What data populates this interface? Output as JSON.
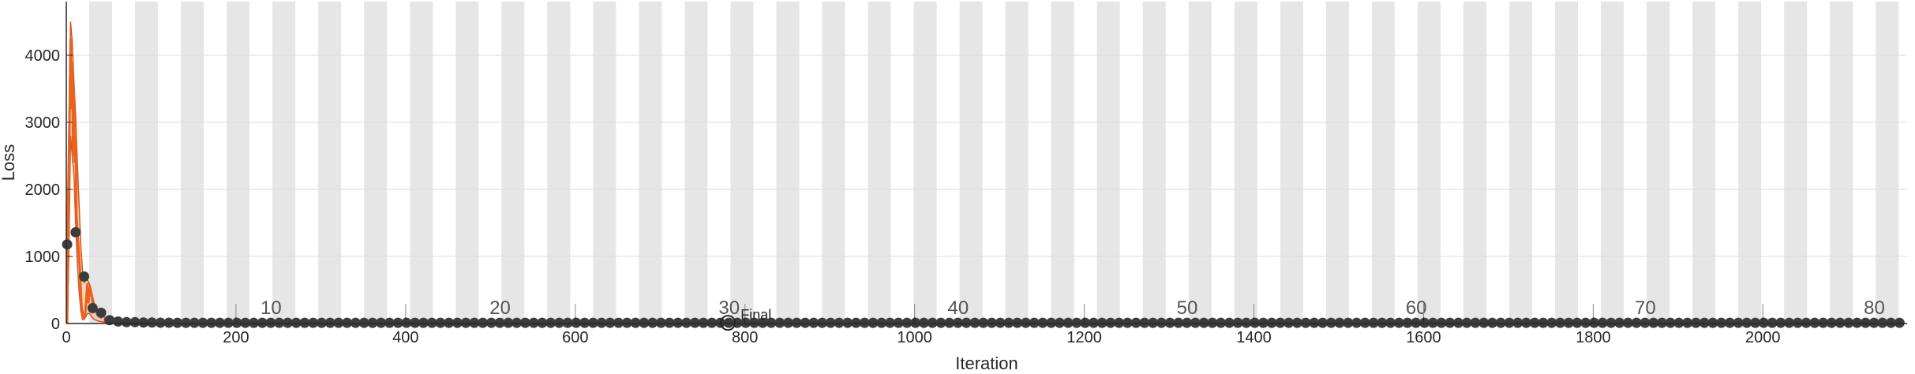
{
  "chart_data": {
    "type": "line",
    "title": "",
    "xlabel": "Iteration",
    "ylabel": "Loss",
    "xlim": [
      0,
      2170
    ],
    "ylim": [
      0,
      4800
    ],
    "grid": true,
    "xticks": [
      0,
      200,
      400,
      600,
      800,
      1000,
      1200,
      1400,
      1600,
      1800,
      2000
    ],
    "yticks": [
      0,
      1000,
      2000,
      3000,
      4000
    ],
    "epoch_bands": {
      "description": "alternating shaded bands mark epochs",
      "width_iterations": 27,
      "start": 0,
      "count": 80
    },
    "epoch_labels": [
      {
        "label": "10",
        "x": 260
      },
      {
        "label": "20",
        "x": 530
      },
      {
        "label": "30",
        "x": 800
      },
      {
        "label": "40",
        "x": 1070
      },
      {
        "label": "50",
        "x": 1340
      },
      {
        "label": "60",
        "x": 1610
      },
      {
        "label": "70",
        "x": 1880
      },
      {
        "label": "80",
        "x": 2150
      }
    ],
    "colors": {
      "raw_line": "#d95319",
      "smoothed_line": "#e8631f",
      "confidence_fill": "#f4b89a",
      "validation_markers": "#3c3c3c",
      "band": "#e6e6e6",
      "grid": "#dcdcdc",
      "axis": "#262626"
    },
    "series": [
      {
        "kind": "line",
        "x": [
          1,
          3,
          5,
          6,
          7,
          8,
          9,
          10,
          11,
          12,
          14,
          16,
          18,
          20,
          22,
          24,
          25,
          26,
          28,
          30,
          32,
          34,
          36,
          38,
          40,
          42
        ],
        "y": [
          0,
          2200,
          4250,
          3200,
          3900,
          2500,
          3450,
          2400,
          2800,
          1600,
          1200,
          800,
          250,
          80,
          100,
          450,
          600,
          300,
          550,
          400,
          200,
          250,
          150,
          120,
          100,
          80
        ]
      },
      {
        "kind": "band",
        "x": [
          1,
          3,
          5,
          7,
          9,
          11,
          13,
          15,
          17,
          19,
          21,
          23,
          25,
          27,
          29,
          31,
          33,
          35,
          37,
          40,
          45
        ],
        "upper": [
          1400,
          3000,
          4500,
          4200,
          3600,
          3100,
          2400,
          1800,
          1200,
          800,
          600,
          700,
          650,
          600,
          520,
          400,
          300,
          250,
          200,
          150,
          100
        ],
        "lower": [
          0,
          1000,
          2800,
          2500,
          2200,
          1500,
          900,
          500,
          200,
          60,
          60,
          100,
          150,
          150,
          120,
          80,
          60,
          50,
          40,
          30,
          20
        ]
      },
      {
        "kind": "markers",
        "x": [
          1,
          11,
          21,
          31,
          41,
          51,
          61,
          71,
          81,
          91,
          101,
          111,
          121,
          131,
          141,
          151,
          161,
          171,
          181,
          191,
          201,
          211,
          221,
          231,
          241,
          251,
          261,
          271,
          281,
          291,
          301,
          311,
          321,
          331,
          341,
          351,
          361,
          371,
          381,
          391,
          401,
          411,
          421,
          431,
          441,
          451,
          461,
          471,
          481,
          491,
          501,
          511,
          521,
          531,
          541,
          551,
          561,
          571,
          581,
          591,
          601,
          611,
          621,
          631,
          641,
          651,
          661,
          671,
          681,
          691,
          701,
          711,
          721,
          731,
          741,
          751,
          761,
          771,
          781,
          791,
          801,
          811,
          821,
          831,
          841,
          851,
          861,
          871,
          881,
          891,
          901,
          911,
          921,
          931,
          941,
          951,
          961,
          971,
          981,
          991,
          1001,
          1011,
          1021,
          1031,
          1041,
          1051,
          1061,
          1071,
          1081,
          1091,
          1101,
          1111,
          1121,
          1131,
          1141,
          1151,
          1161,
          1171,
          1181,
          1191,
          1201,
          1211,
          1221,
          1231,
          1241,
          1251,
          1261,
          1271,
          1281,
          1291,
          1301,
          1311,
          1321,
          1331,
          1341,
          1351,
          1361,
          1371,
          1381,
          1391,
          1401,
          1411,
          1421,
          1431,
          1441,
          1451,
          1461,
          1471,
          1481,
          1491,
          1501,
          1511,
          1521,
          1531,
          1541,
          1551,
          1561,
          1571,
          1581,
          1591,
          1601,
          1611,
          1621,
          1631,
          1641,
          1651,
          1661,
          1671,
          1681,
          1691,
          1701,
          1711,
          1721,
          1731,
          1741,
          1751,
          1761,
          1771,
          1781,
          1791,
          1801,
          1811,
          1821,
          1831,
          1841,
          1851,
          1861,
          1871,
          1881,
          1891,
          1901,
          1911,
          1921,
          1931,
          1941,
          1951,
          1961,
          1971,
          1981,
          1991,
          2001,
          2011,
          2021,
          2031,
          2041,
          2051,
          2061,
          2071,
          2081,
          2091,
          2101,
          2111,
          2121,
          2131,
          2141,
          2151,
          2161
        ],
        "y": [
          1180,
          1360,
          700,
          230,
          160,
          50,
          30,
          20,
          20,
          15,
          15,
          12,
          12,
          10,
          10,
          10,
          10,
          10,
          10,
          10,
          10,
          10,
          10,
          10,
          10,
          10,
          10,
          10,
          10,
          10,
          10,
          10,
          10,
          10,
          10,
          10,
          10,
          10,
          10,
          10,
          10,
          10,
          10,
          10,
          10,
          10,
          10,
          10,
          10,
          10,
          10,
          10,
          10,
          10,
          10,
          10,
          10,
          10,
          10,
          10,
          10,
          10,
          10,
          10,
          10,
          10,
          10,
          10,
          10,
          10,
          10,
          10,
          10,
          10,
          10,
          10,
          10,
          10,
          10,
          10,
          10,
          10,
          10,
          10,
          10,
          10,
          10,
          10,
          10,
          10,
          10,
          10,
          10,
          10,
          10,
          10,
          10,
          10,
          10,
          10,
          10,
          10,
          10,
          10,
          10,
          10,
          10,
          10,
          10,
          10,
          10,
          10,
          10,
          10,
          10,
          10,
          10,
          10,
          10,
          10,
          10,
          10,
          10,
          10,
          10,
          10,
          10,
          10,
          10,
          10,
          10,
          10,
          10,
          10,
          10,
          10,
          10,
          10,
          10,
          10,
          10,
          10,
          10,
          10,
          10,
          10,
          10,
          10,
          10,
          10,
          10,
          10,
          10,
          10,
          10,
          10,
          10,
          10,
          10,
          10,
          10,
          10,
          10,
          10,
          10,
          10,
          10,
          10,
          10,
          10,
          10,
          10,
          10,
          10,
          10,
          10,
          10,
          10,
          10,
          10,
          10,
          10,
          10,
          10,
          10,
          10,
          10,
          10,
          10,
          10,
          10,
          10,
          10,
          10,
          10,
          10,
          10,
          10,
          10,
          10,
          10,
          10,
          10,
          10,
          10,
          10,
          10,
          10,
          10,
          10,
          10,
          10,
          10,
          10,
          10,
          10,
          10
        ]
      }
    ],
    "annotations": [
      {
        "label": "Final",
        "x": 780,
        "y": 10
      }
    ]
  }
}
